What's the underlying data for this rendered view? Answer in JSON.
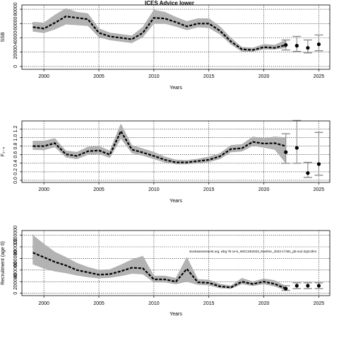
{
  "chart_data": [
    {
      "type": "line",
      "title": "ICES Advice lower",
      "xlabel": "Years",
      "ylabel": "SSB",
      "xlim": [
        1998,
        2026
      ],
      "ylim": [
        -4000,
        86000
      ],
      "xticks": [
        2000,
        2005,
        2010,
        2015,
        2020,
        2025
      ],
      "yticks": [
        0,
        20000,
        40000,
        60000,
        80000
      ],
      "ytick_labels": [
        "0",
        "20000",
        "40000",
        "60000",
        "80000"
      ],
      "grid": true,
      "series": [
        {
          "style": "estimate",
          "x": [
            1999,
            2000,
            2001,
            2002,
            2003,
            2004,
            2005,
            2006,
            2007,
            2008,
            2009,
            2010,
            2011,
            2012,
            2013,
            2014,
            2015,
            2016,
            2017,
            2018,
            2019,
            2020,
            2021,
            2022
          ],
          "y": [
            55000,
            53000,
            61000,
            70000,
            68000,
            66000,
            47000,
            42000,
            40000,
            38000,
            47000,
            68000,
            67000,
            62000,
            56000,
            60000,
            60000,
            50000,
            35000,
            24000,
            23000,
            27000,
            26000,
            30000
          ],
          "lower": [
            49000,
            47000,
            52000,
            59000,
            58000,
            57000,
            41000,
            37000,
            35000,
            33000,
            41000,
            60000,
            60000,
            56000,
            51000,
            55000,
            54000,
            45000,
            31000,
            21000,
            21000,
            24000,
            24000,
            26000
          ],
          "upper": [
            62000,
            61000,
            72000,
            81000,
            76000,
            74000,
            53000,
            47000,
            45000,
            43000,
            55000,
            79000,
            76000,
            69000,
            63000,
            67000,
            67000,
            56000,
            40000,
            27000,
            26000,
            31000,
            30000,
            37000
          ]
        },
        {
          "style": "projection",
          "x": [
            2022,
            2023,
            2024,
            2025
          ],
          "y": [
            30000,
            29000,
            26000,
            31000
          ],
          "lower": [
            23000,
            21000,
            19000,
            22000
          ],
          "upper": [
            37000,
            42000,
            37000,
            44000
          ]
        }
      ]
    },
    {
      "type": "line",
      "xlabel": "Years",
      "ylabel": "F₂₋₅",
      "xlim": [
        1998,
        2026
      ],
      "ylim": [
        -0.05,
        1.39
      ],
      "xticks": [
        2000,
        2005,
        2010,
        2015,
        2020,
        2025
      ],
      "yticks": [
        0,
        0.2,
        0.4,
        0.6,
        0.8,
        1.0,
        1.2
      ],
      "ytick_labels": [
        "0.0",
        "0.2",
        "0.4",
        "0.6",
        "0.8",
        "1.0",
        "1.2"
      ],
      "grid": true,
      "series": [
        {
          "style": "estimate",
          "x": [
            1999,
            2000,
            2001,
            2002,
            2003,
            2004,
            2005,
            2006,
            2007,
            2008,
            2009,
            2010,
            2011,
            2012,
            2013,
            2014,
            2015,
            2016,
            2017,
            2018,
            2019,
            2020,
            2021,
            2022
          ],
          "y": [
            0.8,
            0.8,
            0.87,
            0.61,
            0.57,
            0.68,
            0.7,
            0.6,
            1.15,
            0.72,
            0.65,
            0.57,
            0.48,
            0.42,
            0.42,
            0.45,
            0.48,
            0.56,
            0.73,
            0.75,
            0.9,
            0.86,
            0.87,
            0.8
          ],
          "lower": [
            0.72,
            0.71,
            0.78,
            0.54,
            0.5,
            0.6,
            0.62,
            0.53,
            0.98,
            0.64,
            0.58,
            0.5,
            0.42,
            0.38,
            0.38,
            0.4,
            0.43,
            0.5,
            0.66,
            0.68,
            0.81,
            0.77,
            0.72,
            0.4
          ],
          "upper": [
            0.92,
            0.92,
            0.98,
            0.69,
            0.66,
            0.78,
            0.8,
            0.69,
            1.32,
            0.82,
            0.74,
            0.66,
            0.55,
            0.48,
            0.47,
            0.5,
            0.55,
            0.63,
            0.82,
            0.84,
            1.02,
            0.98,
            1.02,
            1.0
          ]
        },
        {
          "style": "projection",
          "x": [
            2022,
            2023,
            2024,
            2025
          ],
          "y": [
            0.66,
            0.76,
            0.17,
            0.38
          ],
          "lower": [
            0.4,
            0.4,
            0.07,
            0.12
          ],
          "upper": [
            1.09,
            1.4,
            0.42,
            1.12
          ]
        }
      ]
    },
    {
      "type": "line",
      "xlabel": "Years",
      "ylabel": "Recruitment (age 0)",
      "xlim": [
        1998,
        2026
      ],
      "ylim": [
        -40000,
        1080000
      ],
      "xticks": [
        2000,
        2005,
        2010,
        2015,
        2020,
        2025
      ],
      "yticks": [
        0,
        200000,
        400000,
        600000,
        800000,
        1000000
      ],
      "ytick_labels": [
        "0",
        "200000",
        "400000",
        "600000",
        "800000",
        "1000000"
      ],
      "grid": true,
      "annotation": "stockassessment.org, whg.7b-ce-k_WGCSE2023_RevRec_2023-17491_pb-su2-2q2c4hm",
      "series": [
        {
          "style": "estimate",
          "x": [
            1999,
            2000,
            2001,
            2002,
            2003,
            2004,
            2005,
            2006,
            2007,
            2008,
            2009,
            2010,
            2011,
            2012,
            2013,
            2014,
            2015,
            2016,
            2017,
            2018,
            2019,
            2020,
            2021,
            2022
          ],
          "y": [
            700000,
            620000,
            540000,
            480000,
            400000,
            360000,
            320000,
            330000,
            380000,
            440000,
            430000,
            240000,
            240000,
            200000,
            420000,
            190000,
            180000,
            120000,
            100000,
            200000,
            160000,
            200000,
            160000,
            80000
          ],
          "lower": [
            500000,
            430000,
            380000,
            350000,
            310000,
            280000,
            260000,
            270000,
            300000,
            340000,
            330000,
            190000,
            190000,
            160000,
            200000,
            150000,
            140000,
            90000,
            80000,
            160000,
            130000,
            160000,
            120000,
            50000
          ],
          "upper": [
            1000000,
            850000,
            710000,
            620000,
            520000,
            450000,
            400000,
            410000,
            490000,
            580000,
            640000,
            300000,
            300000,
            260000,
            620000,
            240000,
            230000,
            160000,
            130000,
            260000,
            200000,
            250000,
            220000,
            120000
          ]
        },
        {
          "style": "projection",
          "x": [
            2022,
            2023,
            2024,
            2025
          ],
          "y": [
            80000,
            130000,
            130000,
            130000
          ],
          "lower": [
            50000,
            80000,
            80000,
            80000
          ],
          "upper": [
            130000,
            180000,
            180000,
            180000
          ]
        }
      ]
    }
  ]
}
